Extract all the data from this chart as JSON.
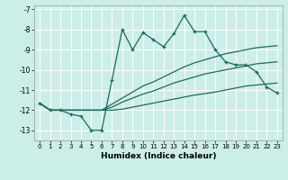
{
  "xlabel": "Humidex (Indice chaleur)",
  "bg_color": "#cceee8",
  "grid_color": "#ffffff",
  "line_color": "#1a6b5a",
  "xlim": [
    -0.5,
    23.5
  ],
  "ylim": [
    -13.5,
    -6.8
  ],
  "xticks": [
    0,
    1,
    2,
    3,
    4,
    5,
    6,
    7,
    8,
    9,
    10,
    11,
    12,
    13,
    14,
    15,
    16,
    17,
    18,
    19,
    20,
    21,
    22,
    23
  ],
  "yticks": [
    -13,
    -12,
    -11,
    -10,
    -9,
    -8,
    -7
  ],
  "line1_x": [
    0,
    1,
    2,
    3,
    4,
    5,
    6,
    7,
    8,
    9,
    10,
    11,
    12,
    13,
    14,
    15,
    16,
    17,
    18,
    19,
    20,
    21,
    22,
    23
  ],
  "line1_y": [
    -11.65,
    -12.0,
    -12.0,
    -12.2,
    -12.3,
    -13.0,
    -13.0,
    -10.5,
    -8.0,
    -9.0,
    -8.15,
    -8.5,
    -8.85,
    -8.2,
    -7.3,
    -8.1,
    -8.1,
    -9.0,
    -9.6,
    -9.75,
    -9.75,
    -10.1,
    -10.85,
    -11.15
  ],
  "line2_x": [
    0,
    1,
    2,
    3,
    4,
    5,
    6,
    7,
    8,
    9,
    10,
    11,
    12,
    13,
    14,
    15,
    16,
    17,
    18,
    19,
    20,
    21,
    22,
    23
  ],
  "line2_y": [
    -11.65,
    -12.0,
    -12.0,
    -12.0,
    -12.0,
    -12.0,
    -12.0,
    -11.7,
    -11.4,
    -11.1,
    -10.8,
    -10.6,
    -10.35,
    -10.1,
    -9.85,
    -9.65,
    -9.5,
    -9.35,
    -9.2,
    -9.1,
    -9.0,
    -8.9,
    -8.85,
    -8.8
  ],
  "line3_x": [
    0,
    1,
    2,
    3,
    4,
    5,
    6,
    7,
    8,
    9,
    10,
    11,
    12,
    13,
    14,
    15,
    16,
    17,
    18,
    19,
    20,
    21,
    22,
    23
  ],
  "line3_y": [
    -11.65,
    -12.0,
    -12.0,
    -12.0,
    -12.0,
    -12.0,
    -12.0,
    -11.85,
    -11.6,
    -11.4,
    -11.2,
    -11.05,
    -10.85,
    -10.65,
    -10.5,
    -10.35,
    -10.2,
    -10.1,
    -10.0,
    -9.9,
    -9.8,
    -9.7,
    -9.65,
    -9.6
  ],
  "line4_x": [
    0,
    1,
    2,
    3,
    4,
    5,
    6,
    7,
    8,
    9,
    10,
    11,
    12,
    13,
    14,
    15,
    16,
    17,
    18,
    19,
    20,
    21,
    22,
    23
  ],
  "line4_y": [
    -11.65,
    -12.0,
    -12.0,
    -12.0,
    -12.0,
    -12.0,
    -12.0,
    -12.0,
    -11.95,
    -11.85,
    -11.75,
    -11.65,
    -11.55,
    -11.45,
    -11.35,
    -11.25,
    -11.18,
    -11.1,
    -11.0,
    -10.9,
    -10.8,
    -10.75,
    -10.7,
    -10.65
  ]
}
